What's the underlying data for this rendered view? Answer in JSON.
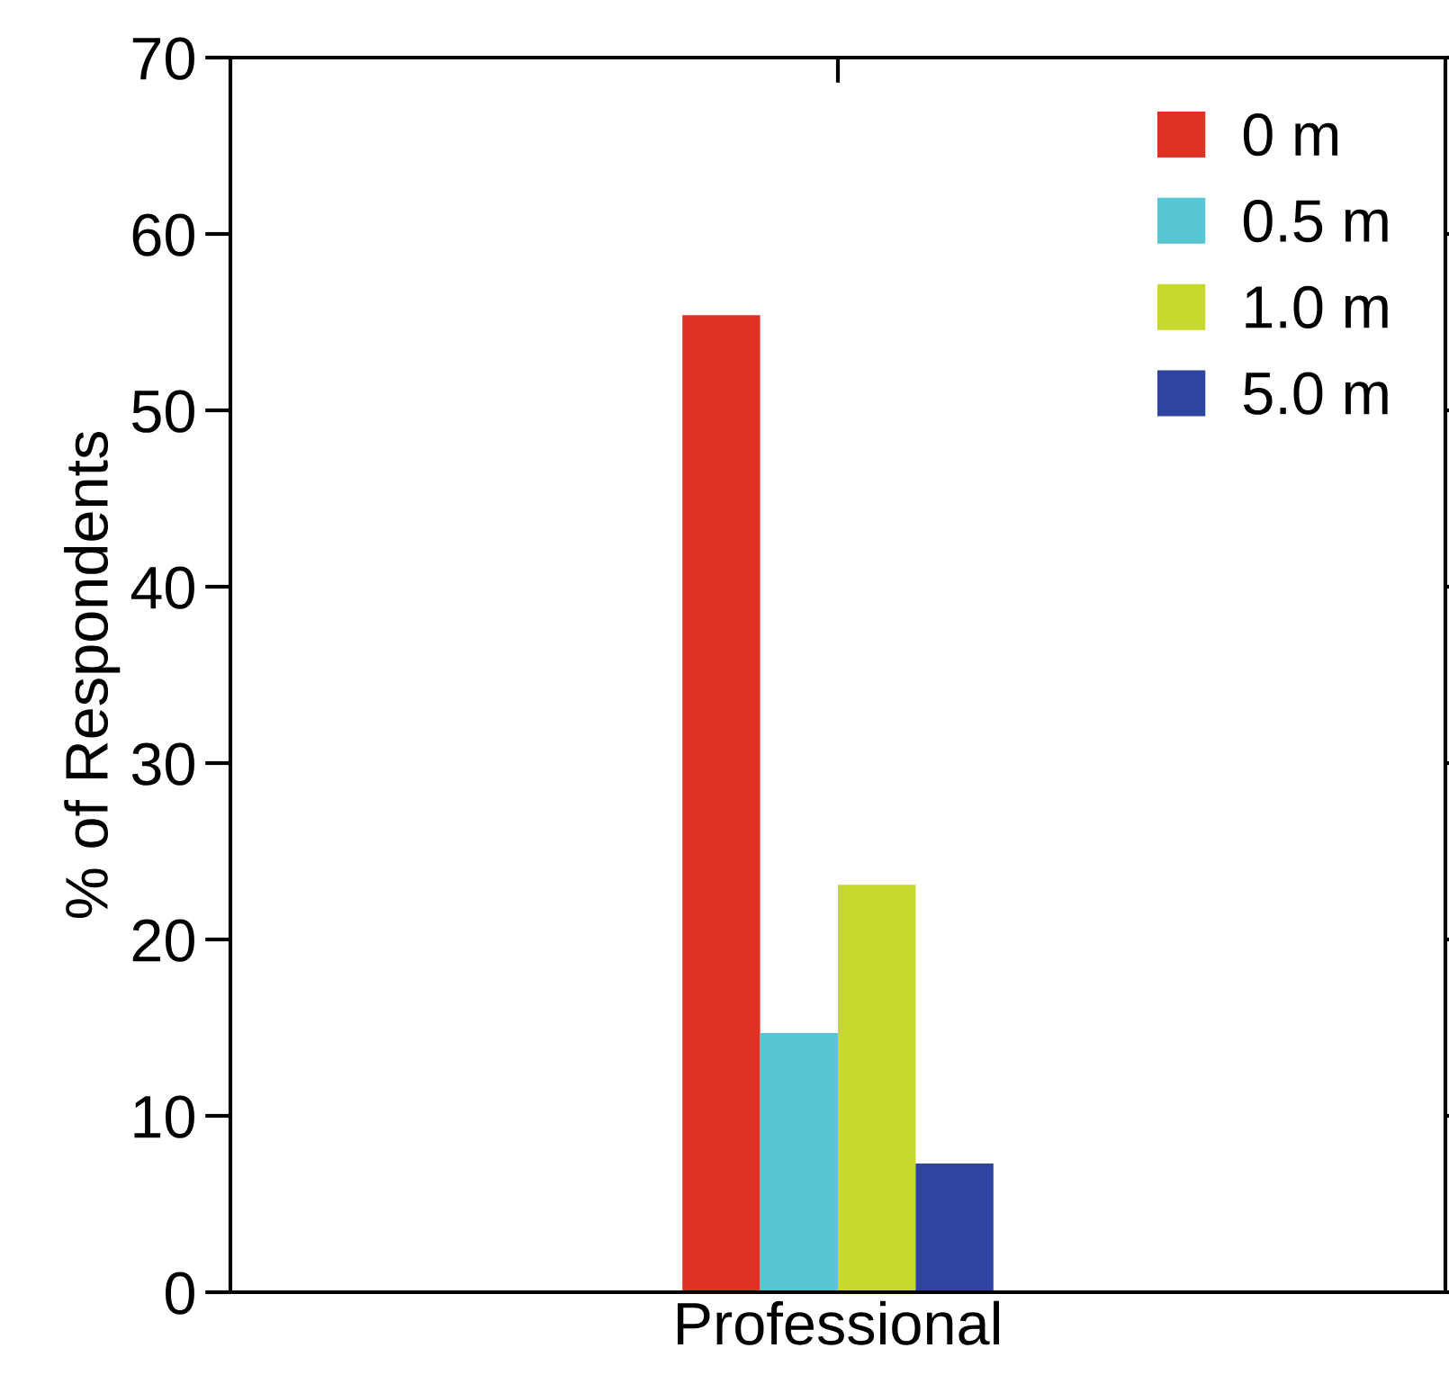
{
  "chart_data": {
    "type": "bar",
    "ylabel": "% of Respondents",
    "categories": [
      "Professional"
    ],
    "series": [
      {
        "name": "0 m",
        "color": "#e03224",
        "values": [
          55.4
        ]
      },
      {
        "name": "0.5 m",
        "color": "#55c6d2",
        "values": [
          14.7
        ]
      },
      {
        "name": "1.0 m",
        "color": "#c6d92c",
        "values": [
          23.1
        ]
      },
      {
        "name": "5.0 m",
        "color": "#2e44a0",
        "values": [
          7.3
        ]
      }
    ],
    "ylim": [
      0,
      70
    ],
    "yticks": [
      0,
      10,
      20,
      30,
      40,
      50,
      60,
      70
    ],
    "grid": false,
    "legend": "top right"
  }
}
